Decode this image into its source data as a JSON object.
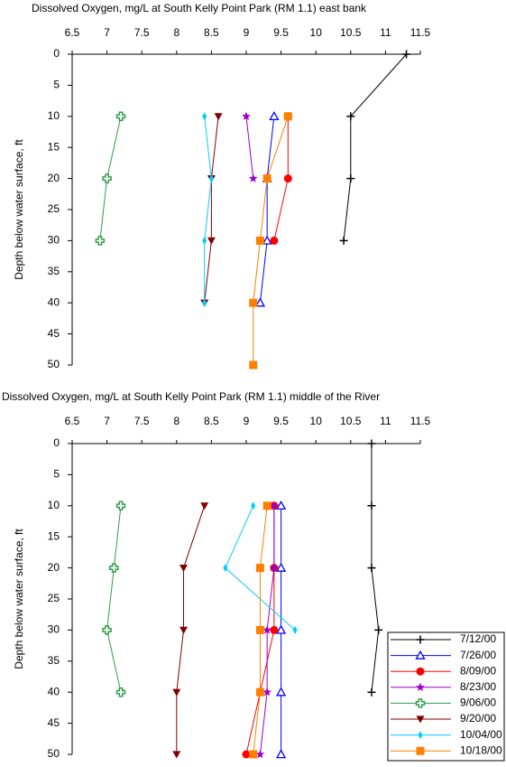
{
  "legend": {
    "position": "lower right",
    "entries": [
      {
        "name": "7/12/00",
        "color": "#000000",
        "marker": "plus"
      },
      {
        "name": "7/26/00",
        "color": "#0000ff",
        "marker": "triangle-open"
      },
      {
        "name": "8/09/00",
        "color": "#ff0000",
        "marker": "circle"
      },
      {
        "name": "8/23/00",
        "color": "#9900cc",
        "marker": "star"
      },
      {
        "name": "9/06/00",
        "color": "#2e9e4a",
        "marker": "cross-open"
      },
      {
        "name": "9/20/00",
        "color": "#800000",
        "marker": "triangle-down"
      },
      {
        "name": "10/04/00",
        "color": "#00ccff",
        "marker": "diamond"
      },
      {
        "name": "10/18/00",
        "color": "#ff8000",
        "marker": "square"
      }
    ]
  },
  "chart_data": [
    {
      "type": "line",
      "title": "Dissolved Oxygen, mg/L at South Kelly Point Park (RM 1.1) east bank",
      "y_label": "Depth below water surface, ft",
      "x_axis_position": "top",
      "y_reversed": true,
      "xlim": [
        6.5,
        11.5
      ],
      "xticks": [
        6.5,
        7,
        7.5,
        8,
        8.5,
        9,
        9.5,
        10,
        10.5,
        11,
        11.5
      ],
      "ylim": [
        0,
        50
      ],
      "yticks": [
        0,
        5,
        10,
        15,
        20,
        25,
        30,
        35,
        40,
        45,
        50
      ],
      "series": [
        {
          "values": [
            11.3,
            10.5,
            10.5,
            10.4
          ],
          "depth": [
            0,
            10,
            20,
            30
          ]
        },
        {
          "values": [
            9.4,
            9.3,
            9.3,
            9.2
          ],
          "depth": [
            10,
            20,
            30,
            40
          ]
        },
        {
          "values": [
            9.6,
            9.6,
            9.4
          ],
          "depth": [
            10,
            20,
            30
          ]
        },
        {
          "values": [
            9.0,
            9.1
          ],
          "depth": [
            10,
            20
          ]
        },
        {
          "values": [
            7.2,
            7.0,
            6.9
          ],
          "depth": [
            10,
            20,
            30
          ]
        },
        {
          "values": [
            8.6,
            8.5,
            8.5,
            8.4
          ],
          "depth": [
            10,
            20,
            30,
            40
          ]
        },
        {
          "values": [
            8.4,
            8.5,
            8.4,
            8.4
          ],
          "depth": [
            10,
            20,
            30,
            40
          ]
        },
        {
          "values": [
            9.6,
            9.3,
            9.2,
            9.1,
            9.1
          ],
          "depth": [
            10,
            20,
            30,
            40,
            50
          ]
        }
      ]
    },
    {
      "type": "line",
      "title": "Dissolved Oxygen, mg/L at South Kelly Point Park (RM 1.1) middle of the River",
      "y_label": "Depth below water surface, ft",
      "x_axis_position": "top",
      "y_reversed": true,
      "xlim": [
        6.5,
        11.5
      ],
      "xticks": [
        6.5,
        7,
        7.5,
        8,
        8.5,
        9,
        9.5,
        10,
        10.5,
        11,
        11.5
      ],
      "ylim": [
        0,
        50
      ],
      "yticks": [
        0,
        5,
        10,
        15,
        20,
        25,
        30,
        35,
        40,
        45,
        50
      ],
      "series": [
        {
          "values": [
            10.8,
            10.8,
            10.8,
            10.9,
            10.8
          ],
          "depth": [
            0,
            10,
            20,
            30,
            40
          ]
        },
        {
          "values": [
            9.5,
            9.5,
            9.5,
            9.5,
            9.5
          ],
          "depth": [
            10,
            20,
            30,
            40,
            50
          ]
        },
        {
          "values": [
            9.4,
            9.4,
            9.4,
            9.0
          ],
          "depth": [
            10,
            20,
            30,
            50
          ]
        },
        {
          "values": [
            9.4,
            9.4,
            9.3,
            9.3,
            9.2
          ],
          "depth": [
            10,
            20,
            30,
            40,
            50
          ]
        },
        {
          "values": [
            7.2,
            7.1,
            7.0,
            7.2
          ],
          "depth": [
            10,
            20,
            30,
            40
          ]
        },
        {
          "values": [
            8.4,
            8.1,
            8.1,
            8.0,
            8.0
          ],
          "depth": [
            10,
            20,
            30,
            40,
            50
          ]
        },
        {
          "values": [
            9.1,
            8.7,
            9.7
          ],
          "depth": [
            10,
            20,
            30
          ]
        },
        {
          "values": [
            9.3,
            9.2,
            9.2,
            9.2,
            9.1
          ],
          "depth": [
            10,
            20,
            30,
            40,
            50
          ]
        }
      ]
    }
  ]
}
